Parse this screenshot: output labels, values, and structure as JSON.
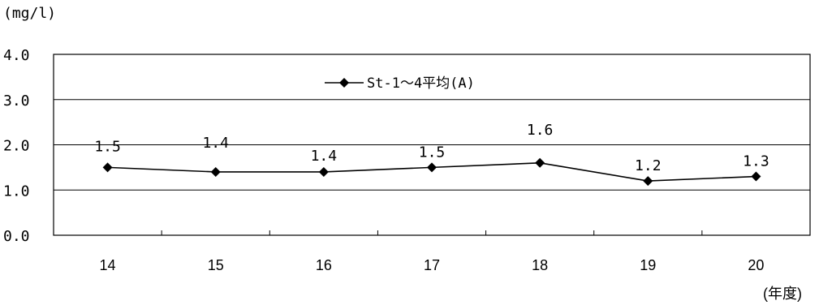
{
  "chart_data": {
    "type": "line",
    "y_unit_label": "(mg/l)",
    "x_unit_label": "(年度)",
    "categories": [
      "14",
      "15",
      "16",
      "17",
      "18",
      "19",
      "20"
    ],
    "series": [
      {
        "name": "St-1～4平均(A)",
        "values": [
          1.5,
          1.4,
          1.4,
          1.5,
          1.6,
          1.2,
          1.3
        ],
        "data_labels": [
          "1.5",
          "1.4",
          "1.4",
          "1.5",
          "1.6",
          "1.2",
          "1.3"
        ],
        "color": "#000000",
        "marker": "diamond"
      }
    ],
    "ylim": [
      0,
      4.0
    ],
    "yticks": [
      "0.0",
      "1.0",
      "2.0",
      "3.0",
      "4.0"
    ],
    "grid": true,
    "legend_position": "top-center"
  }
}
